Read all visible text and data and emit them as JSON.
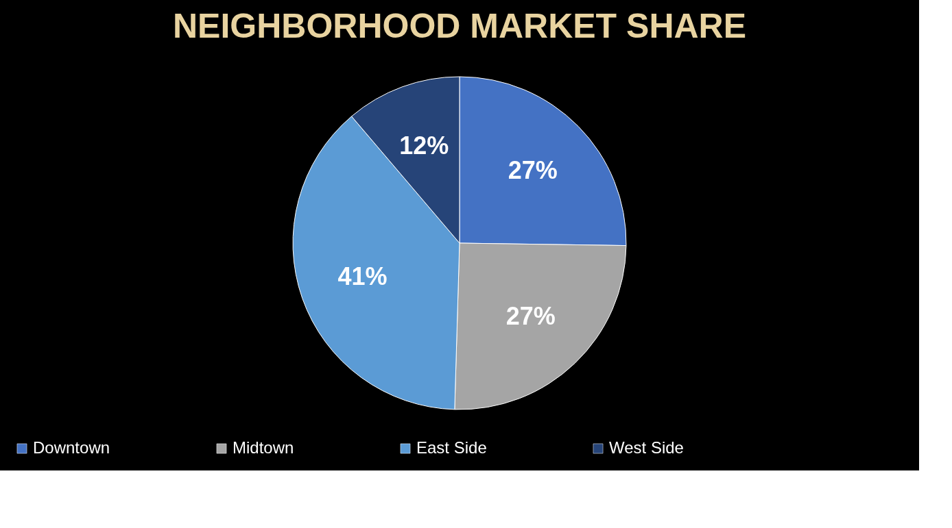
{
  "chart_data": {
    "type": "pie",
    "title": "NEIGHBORHOOD MARKET SHARE",
    "categories": [
      "Downtown",
      "Midtown",
      "East Side",
      "West Side"
    ],
    "values": [
      27,
      27,
      41,
      12
    ],
    "colors": [
      "#4472c4",
      "#a5a5a5",
      "#5b9bd5",
      "#264478"
    ],
    "value_labels": [
      "27%",
      "27%",
      "41%",
      "12%"
    ],
    "legend": "bottom"
  }
}
